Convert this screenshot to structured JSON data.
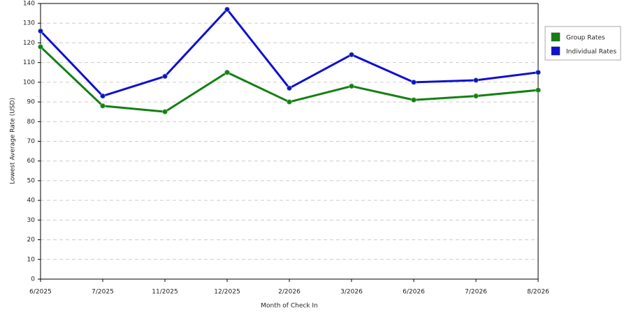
{
  "chart_data": {
    "type": "line",
    "x_label": "Month of Check In",
    "y_label": "Lowest Average Rate (USD)",
    "categories": [
      "6/2025",
      "7/2025",
      "11/2025",
      "12/2025",
      "2/2026",
      "3/2026",
      "6/2026",
      "7/2026",
      "8/2026"
    ],
    "series": [
      {
        "name": "Group Rates",
        "color": "#138013",
        "values": [
          118,
          88,
          85,
          105,
          90,
          98,
          91,
          93,
          96
        ]
      },
      {
        "name": "Individual Rates",
        "color": "#1010d0",
        "values": [
          126,
          93,
          103,
          137,
          97,
          114,
          100,
          101,
          105
        ]
      }
    ],
    "ylim": [
      0,
      140
    ],
    "yticks": [
      0,
      10,
      20,
      30,
      40,
      50,
      60,
      70,
      80,
      90,
      100,
      110,
      120,
      130,
      140
    ],
    "grid": true,
    "legend": "right"
  }
}
